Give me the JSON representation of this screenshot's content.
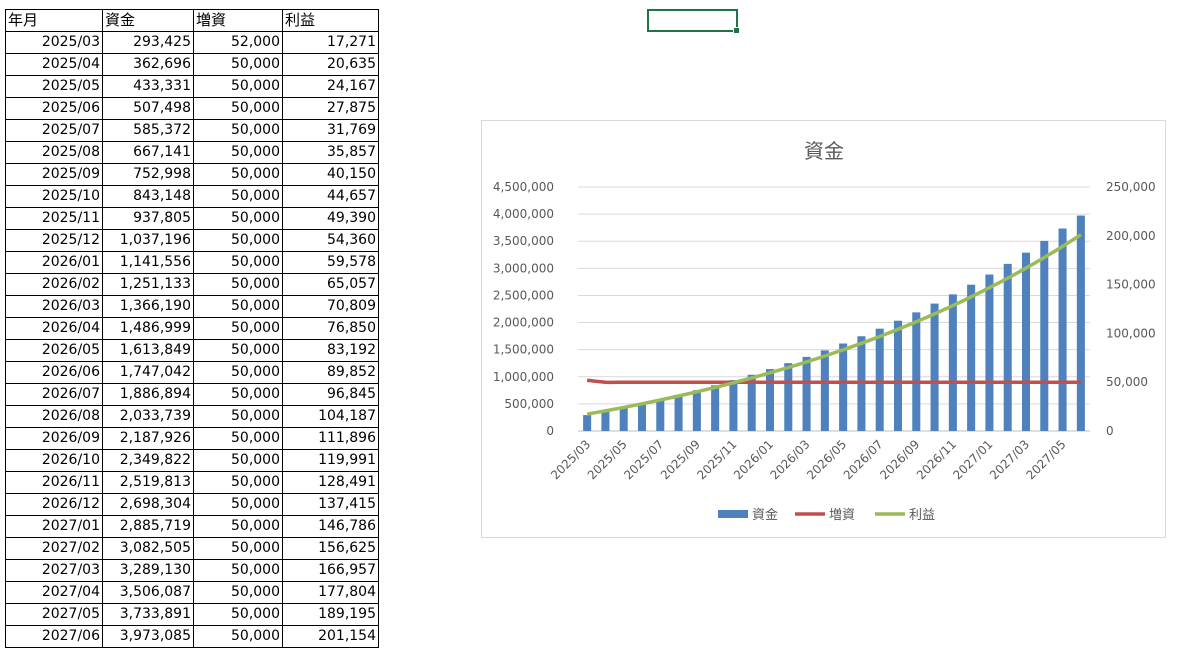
{
  "sheet": {
    "headers": [
      "年月",
      "資金",
      "増資",
      "利益"
    ],
    "rows": [
      [
        "2025/03",
        "293,425",
        "52,000",
        "17,271"
      ],
      [
        "2025/04",
        "362,696",
        "50,000",
        "20,635"
      ],
      [
        "2025/05",
        "433,331",
        "50,000",
        "24,167"
      ],
      [
        "2025/06",
        "507,498",
        "50,000",
        "27,875"
      ],
      [
        "2025/07",
        "585,372",
        "50,000",
        "31,769"
      ],
      [
        "2025/08",
        "667,141",
        "50,000",
        "35,857"
      ],
      [
        "2025/09",
        "752,998",
        "50,000",
        "40,150"
      ],
      [
        "2025/10",
        "843,148",
        "50,000",
        "44,657"
      ],
      [
        "2025/11",
        "937,805",
        "50,000",
        "49,390"
      ],
      [
        "2025/12",
        "1,037,196",
        "50,000",
        "54,360"
      ],
      [
        "2026/01",
        "1,141,556",
        "50,000",
        "59,578"
      ],
      [
        "2026/02",
        "1,251,133",
        "50,000",
        "65,057"
      ],
      [
        "2026/03",
        "1,366,190",
        "50,000",
        "70,809"
      ],
      [
        "2026/04",
        "1,486,999",
        "50,000",
        "76,850"
      ],
      [
        "2026/05",
        "1,613,849",
        "50,000",
        "83,192"
      ],
      [
        "2026/06",
        "1,747,042",
        "50,000",
        "89,852"
      ],
      [
        "2026/07",
        "1,886,894",
        "50,000",
        "96,845"
      ],
      [
        "2026/08",
        "2,033,739",
        "50,000",
        "104,187"
      ],
      [
        "2026/09",
        "2,187,926",
        "50,000",
        "111,896"
      ],
      [
        "2026/10",
        "2,349,822",
        "50,000",
        "119,991"
      ],
      [
        "2026/11",
        "2,519,813",
        "50,000",
        "128,491"
      ],
      [
        "2026/12",
        "2,698,304",
        "50,000",
        "137,415"
      ],
      [
        "2027/01",
        "2,885,719",
        "50,000",
        "146,786"
      ],
      [
        "2027/02",
        "3,082,505",
        "50,000",
        "156,625"
      ],
      [
        "2027/03",
        "3,289,130",
        "50,000",
        "166,957"
      ],
      [
        "2027/04",
        "3,506,087",
        "50,000",
        "177,804"
      ],
      [
        "2027/05",
        "3,733,891",
        "50,000",
        "189,195"
      ],
      [
        "2027/06",
        "3,973,085",
        "50,000",
        "201,154"
      ]
    ]
  },
  "chart_data": {
    "type": "bar",
    "title": "資金",
    "categories": [
      "2025/03",
      "2025/04",
      "2025/05",
      "2025/06",
      "2025/07",
      "2025/08",
      "2025/09",
      "2025/10",
      "2025/11",
      "2025/12",
      "2026/01",
      "2026/02",
      "2026/03",
      "2026/04",
      "2026/05",
      "2026/06",
      "2026/07",
      "2026/08",
      "2026/09",
      "2026/10",
      "2026/11",
      "2026/12",
      "2027/01",
      "2027/02",
      "2027/03",
      "2027/04",
      "2027/05",
      "2027/06"
    ],
    "x_tick_labels": [
      "2025/03",
      "2025/05",
      "2025/07",
      "2025/09",
      "2025/11",
      "2026/01",
      "2026/03",
      "2026/05",
      "2026/07",
      "2026/09",
      "2026/11",
      "2027/01",
      "2027/03",
      "2027/05"
    ],
    "series": [
      {
        "name": "資金",
        "type": "bar",
        "axis": "left",
        "color": "#4F81BD",
        "values": [
          293425,
          362696,
          433331,
          507498,
          585372,
          667141,
          752998,
          843148,
          937805,
          1037196,
          1141556,
          1251133,
          1366190,
          1486999,
          1613849,
          1747042,
          1886894,
          2033739,
          2187926,
          2349822,
          2519813,
          2698304,
          2885719,
          3082505,
          3289130,
          3506087,
          3733891,
          3973085
        ]
      },
      {
        "name": "増資",
        "type": "line",
        "axis": "right",
        "color": "#C0504D",
        "values": [
          52000,
          50000,
          50000,
          50000,
          50000,
          50000,
          50000,
          50000,
          50000,
          50000,
          50000,
          50000,
          50000,
          50000,
          50000,
          50000,
          50000,
          50000,
          50000,
          50000,
          50000,
          50000,
          50000,
          50000,
          50000,
          50000,
          50000,
          50000
        ]
      },
      {
        "name": "利益",
        "type": "line",
        "axis": "right",
        "color": "#9BBB59",
        "values": [
          17271,
          20635,
          24167,
          27875,
          31769,
          35857,
          40150,
          44657,
          49390,
          54360,
          59578,
          65057,
          70809,
          76850,
          83192,
          89852,
          96845,
          104187,
          111896,
          119991,
          128491,
          137415,
          146786,
          156625,
          166957,
          177804,
          189195,
          201154
        ]
      }
    ],
    "y_left": {
      "min": 0,
      "max": 4500000,
      "step": 500000,
      "ticks": [
        "0",
        "500,000",
        "1,000,000",
        "1,500,000",
        "2,000,000",
        "2,500,000",
        "3,000,000",
        "3,500,000",
        "4,000,000",
        "4,500,000"
      ]
    },
    "y_right": {
      "min": 0,
      "max": 250000,
      "step": 50000,
      "ticks": [
        "0",
        "50,000",
        "100,000",
        "150,000",
        "200,000",
        "250,000"
      ]
    },
    "grid": true,
    "legend_position": "bottom"
  }
}
